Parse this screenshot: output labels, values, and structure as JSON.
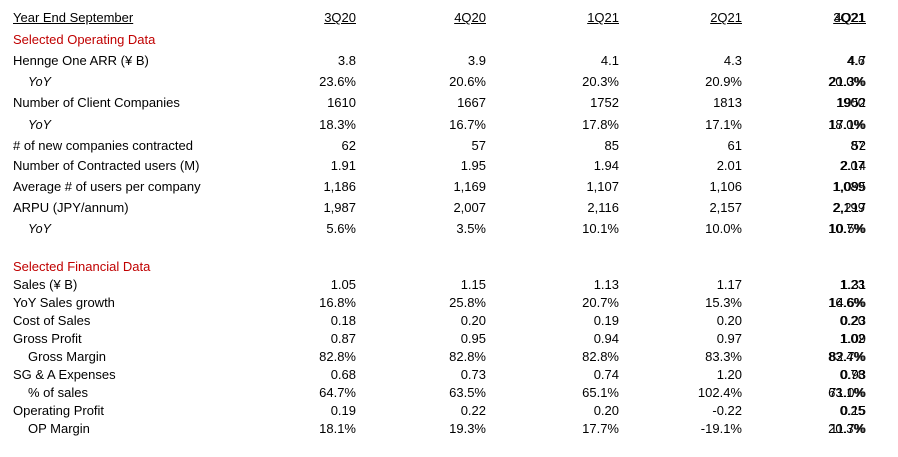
{
  "header": {
    "label": "Year End September",
    "periods": [
      "3Q20",
      "4Q20",
      "1Q21",
      "2Q21",
      "3Q21",
      "4Q21"
    ]
  },
  "operating": {
    "title": "Selected Operating Data",
    "rows": [
      {
        "label": "Hennge One ARR (¥ B)",
        "values": [
          "3.8",
          "3.9",
          "4.1",
          "4.3",
          "4.6",
          "4.7"
        ]
      },
      {
        "label": "YoY",
        "values": [
          "23.6%",
          "20.6%",
          "20.3%",
          "20.9%",
          "20.0%",
          "21.3%"
        ]
      },
      {
        "label": "Number of Client Companies",
        "values": [
          "1610",
          "1667",
          "1752",
          "1813",
          "1900",
          "1952"
        ]
      },
      {
        "label": "YoY",
        "values": [
          "18.3%",
          "16.7%",
          "17.8%",
          "17.1%",
          "18.0%",
          "17.1%"
        ]
      },
      {
        "label": "# of new companies contracted",
        "values": [
          "62",
          "57",
          "85",
          "61",
          "87",
          "52"
        ]
      },
      {
        "label": "Number of Contracted users (M)",
        "values": [
          "1.91",
          "1.95",
          "1.94",
          "2.01",
          "2.07",
          "2.14"
        ]
      },
      {
        "label": "Average # of users per company",
        "values": [
          "1,186",
          "1,169",
          "1,107",
          "1,106",
          "1,089",
          "1,095"
        ]
      },
      {
        "label": "ARPU (JPY/annum)",
        "values": [
          "1,987",
          "2,007",
          "2,116",
          "2,157",
          "2,199",
          "2,217"
        ]
      },
      {
        "label": "YoY",
        "values": [
          "5.6%",
          "3.5%",
          "10.1%",
          "10.0%",
          "10.7%",
          "10.5%"
        ]
      }
    ]
  },
  "financial": {
    "title": "Selected Financial Data",
    "rows": [
      {
        "label": "Sales (¥ B)",
        "values": [
          "1.05",
          "1.15",
          "1.13",
          "1.17",
          "1.23",
          "1.31"
        ]
      },
      {
        "label": "YoY Sales growth",
        "values": [
          "16.8%",
          "25.8%",
          "20.7%",
          "15.3%",
          "16.6%",
          "14.6%"
        ]
      },
      {
        "label": "Cost of Sales",
        "values": [
          "0.18",
          "0.20",
          "0.19",
          "0.20",
          "0.20",
          "0.23"
        ]
      },
      {
        "label": "Gross Profit",
        "values": [
          "0.87",
          "0.95",
          "0.94",
          "0.97",
          "1.02",
          "1.09"
        ]
      },
      {
        "label": "Gross Margin",
        "values": [
          "82.8%",
          "82.8%",
          "82.8%",
          "83.3%",
          "83.4%",
          "82.7%"
        ]
      },
      {
        "label": "SG & A Expenses",
        "values": [
          "0.68",
          "0.73",
          "0.74",
          "1.20",
          "0.78",
          "0.93"
        ]
      },
      {
        "label": "% of sales",
        "values": [
          "64.7%",
          "63.5%",
          "65.1%",
          "102.4%",
          "63.1%",
          "71.0%"
        ]
      },
      {
        "label": "Operating Profit",
        "values": [
          "0.19",
          "0.22",
          "0.20",
          "-0.22",
          "0.25",
          "0.15"
        ]
      },
      {
        "label": "OP Margin",
        "values": [
          "18.1%",
          "19.3%",
          "17.7%",
          "-19.1%",
          "20.3%",
          "11.7%"
        ]
      }
    ]
  }
}
